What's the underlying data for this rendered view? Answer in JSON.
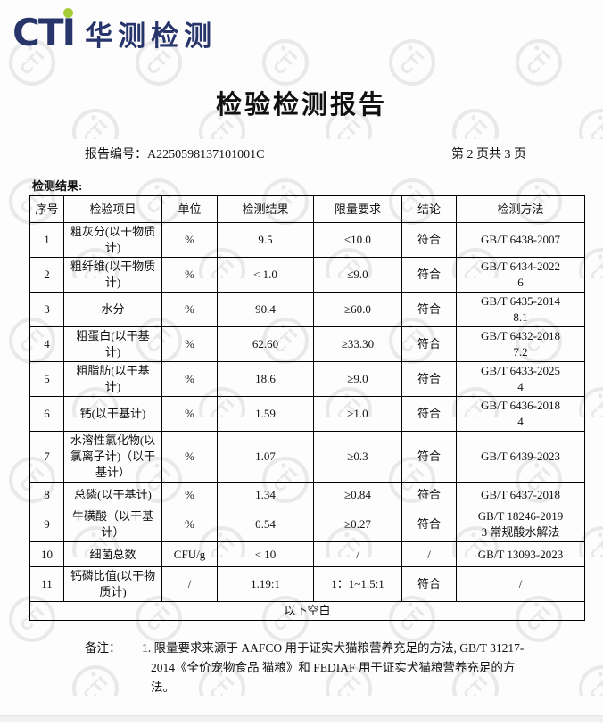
{
  "logo": {
    "text": "CTI",
    "cn": "华测检测",
    "navy": "#28356b",
    "green": "#a6ce39"
  },
  "page": {
    "title": "检验检测报告",
    "report_no_label": "报告编号：",
    "report_no": "A2250598137101001C",
    "page_info": "第 2 页共 3 页",
    "section_label": "检测结果:"
  },
  "table": {
    "headers": [
      "序号",
      "检验项目",
      "单位",
      "检测结果",
      "限量要求",
      "结论",
      "检测方法"
    ],
    "rows": [
      [
        "1",
        "粗灰分(以干物质\n计)",
        "%",
        "9.5",
        "≤10.0",
        "符合",
        "GB/T 6438-2007"
      ],
      [
        "2",
        "粗纤维(以干物质\n计)",
        "%",
        "< 1.0",
        "≤9.0",
        "符合",
        "GB/T 6434-2022\n6"
      ],
      [
        "3",
        "水分",
        "%",
        "90.4",
        "≥60.0",
        "符合",
        "GB/T 6435-2014\n8.1"
      ],
      [
        "4",
        "粗蛋白(以干基\n计)",
        "%",
        "62.60",
        "≥33.30",
        "符合",
        "GB/T 6432-2018\n7.2"
      ],
      [
        "5",
        "粗脂肪(以干基\n计)",
        "%",
        "18.6",
        "≥9.0",
        "符合",
        "GB/T 6433-2025\n4"
      ],
      [
        "6",
        "钙(以干基计)",
        "%",
        "1.59",
        "≥1.0",
        "符合",
        "GB/T 6436-2018\n4"
      ],
      [
        "7",
        "水溶性氯化物(以\n氯离子计)（以干\n基计）",
        "%",
        "1.07",
        "≥0.3",
        "符合",
        "GB/T 6439-2023"
      ],
      [
        "8",
        "总磷(以干基计)",
        "%",
        "1.34",
        "≥0.84",
        "符合",
        "GB/T 6437-2018"
      ],
      [
        "9",
        "牛磺酸（以干基\n计）",
        "%",
        "0.54",
        "≥0.27",
        "符合",
        "GB/T 18246-2019\n3 常规酸水解法"
      ],
      [
        "10",
        "细菌总数",
        "CFU/g",
        "< 10",
        "/",
        "/",
        "GB/T 13093-2023"
      ],
      [
        "11",
        "钙磷比值(以干物\n质计)",
        "/",
        "1.19:1",
        "1：1~1.5:1",
        "符合",
        "/"
      ]
    ],
    "blank_row": "以下空白"
  },
  "remark": {
    "label": "备注：",
    "line1": "1. 限量要求来源于 AAFCO 用于证实犬猫粮营养充足的方法, GB/T 31217-",
    "line2": "2014《全价宠物食品 猫粮》和 FEDIAF 用于证实犬猫粮营养充足的方法。"
  },
  "watermark": {
    "text": "CTI",
    "color": "#e9e9e9"
  }
}
